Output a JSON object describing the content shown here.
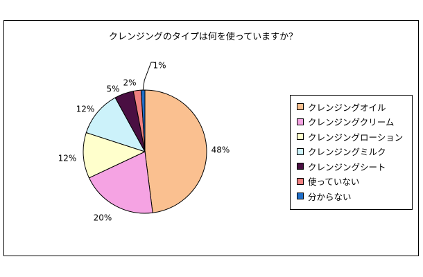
{
  "chart_data": {
    "type": "pie",
    "title": "クレンジングのタイプは何を使っていますか？",
    "slices": [
      {
        "label": "クレンジングオイル",
        "value": 48,
        "value_label": "48%",
        "color": "#FAC090"
      },
      {
        "label": "クレンジングクリーム",
        "value": 20,
        "value_label": "20%",
        "color": "#F5A3E3"
      },
      {
        "label": "クレンジングローション",
        "value": 12,
        "value_label": "12%",
        "color": "#FFFFCC"
      },
      {
        "label": "クレンジングミルク",
        "value": 12,
        "value_label": "12%",
        "color": "#CCF2FA"
      },
      {
        "label": "クレンジングシート",
        "value": 5,
        "value_label": "5%",
        "color": "#4A0F42"
      },
      {
        "label": "使っていない",
        "value": 2,
        "value_label": "2%",
        "color": "#F08080"
      },
      {
        "label": "分からない",
        "value": 1,
        "value_label": "1%",
        "color": "#1F6EC8"
      }
    ],
    "legend_position": "right"
  }
}
